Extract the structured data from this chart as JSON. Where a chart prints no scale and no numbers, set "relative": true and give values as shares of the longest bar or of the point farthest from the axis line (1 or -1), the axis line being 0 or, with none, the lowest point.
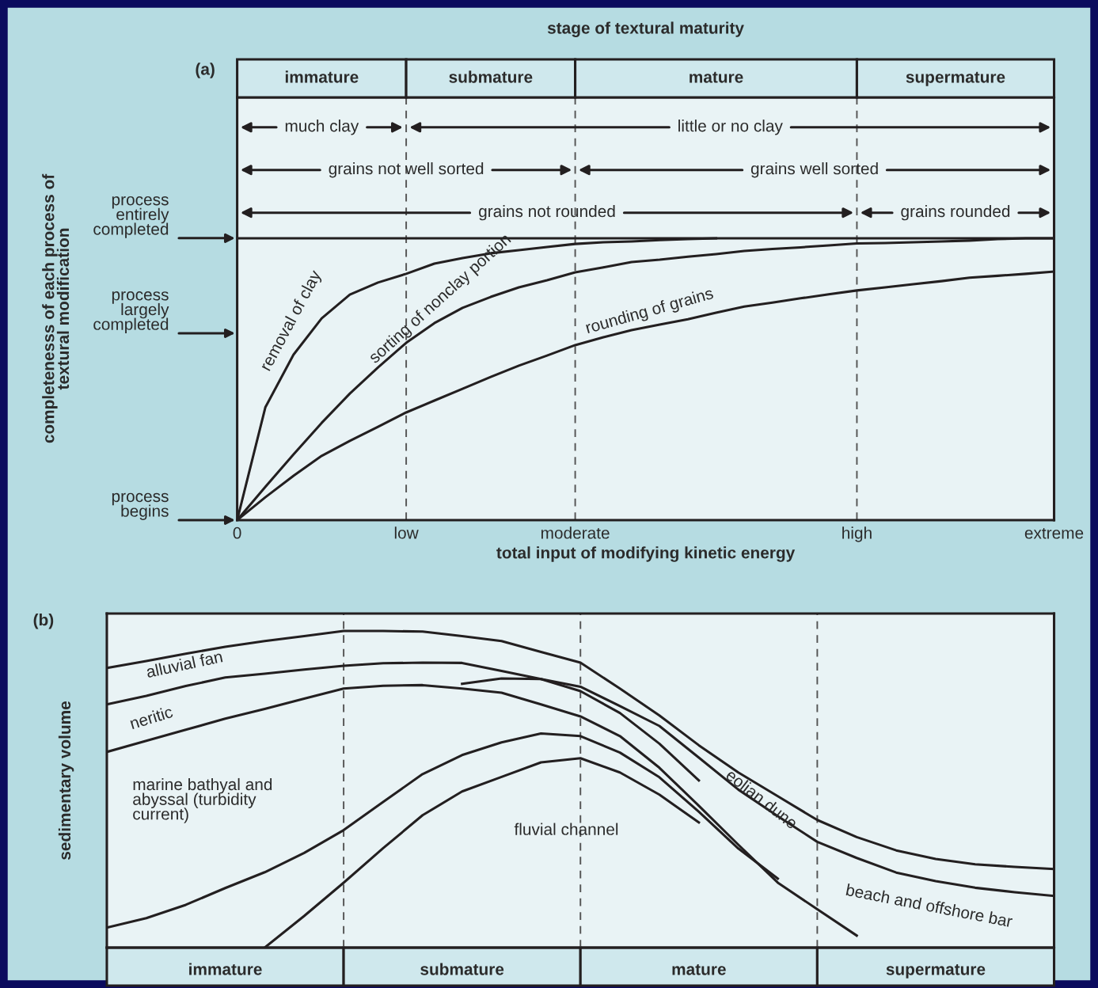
{
  "chart_data": [
    {
      "type": "line",
      "relative": true,
      "title": "stage of textural maturity",
      "subtitle": "(a)",
      "xlabel": "total input of modifying kinetic energy",
      "ylabel": "completenesss of each process of\ntextural modification",
      "grid": "x",
      "categories": [
        "0",
        null,
        null,
        null,
        null,
        null,
        "low",
        null,
        null,
        null,
        null,
        null,
        "moderate",
        null,
        null,
        null,
        null,
        null,
        null,
        null,
        null,
        null,
        "high",
        null,
        null,
        null,
        null,
        null,
        null,
        "extreme"
      ],
      "annotations": [
        "immature",
        "submature",
        "mature",
        "supermature",
        "much clay",
        "little or no clay",
        "grains not well sorted",
        "grains well sorted",
        "grains not rounded",
        "grains rounded",
        "process\nbegins",
        "process\nlargely\ncompleted",
        "process\nentirely\ncompleted"
      ],
      "series": [
        {
          "name": "removal of clay",
          "color": "#231f20",
          "values": [
            0,
            0.4,
            0.587,
            0.716,
            0.8,
            0.843,
            0.874,
            0.91,
            0.93,
            0.947,
            0.958,
            0.969,
            0.98,
            0.986,
            0.989,
            0.994,
            0.997,
            1,
            null,
            null,
            null,
            null,
            null,
            null,
            null,
            null,
            null,
            null,
            null,
            null
          ]
        },
        {
          "name": "sorting of nonclay portion",
          "color": "#231f20",
          "values": [
            0,
            0.118,
            0.233,
            0.345,
            0.449,
            0.542,
            0.629,
            0.699,
            0.753,
            0.792,
            0.826,
            0.851,
            0.879,
            0.897,
            0.916,
            0.924,
            0.935,
            0.944,
            0.955,
            0.962,
            0.968,
            0.975,
            0.982,
            0.983,
            0.986,
            0.989,
            0.992,
            0.997,
            1,
            1
          ]
        },
        {
          "name": "rounding of grains",
          "color": "#231f20",
          "values": [
            0,
            0.081,
            0.157,
            0.228,
            0.281,
            0.331,
            0.382,
            0.424,
            0.466,
            0.508,
            0.548,
            0.584,
            0.621,
            0.649,
            0.674,
            0.694,
            0.713,
            0.736,
            0.758,
            0.772,
            0.787,
            0.801,
            0.815,
            0.826,
            0.837,
            0.848,
            0.86,
            0.867,
            0.874,
            0.882
          ]
        }
      ],
      "ref_lines": [
        {
          "axis": "y",
          "value": 1,
          "color": "#231f20",
          "line_style": "solid"
        }
      ]
    },
    {
      "type": "line",
      "relative": true,
      "subtitle": "(b)",
      "ylabel": "sedimentary volume",
      "grid": "x",
      "categories": [
        null,
        null,
        null,
        "immature",
        null,
        null,
        null,
        null,
        null,
        "submature",
        null,
        null,
        null,
        null,
        null,
        "mature",
        null,
        null,
        null,
        null,
        null,
        "supermature",
        null,
        null,
        null
      ],
      "annotations": [
        "alluvial fan",
        "neritic",
        "marine bathyal and\nabyssal (turbidity\ncurrent)",
        "fluvial channel",
        "eolian dune",
        "beach and offshore bar"
      ],
      "series": [
        {
          "color": "#231f20",
          "values": [
            0.883,
            0.905,
            0.928,
            0.95,
            0.968,
            0.984,
            1.0,
            1.0,
            0.998,
            0.984,
            0.968,
            0.934,
            0.9,
            0.818,
            0.733,
            0.639,
            0.553,
            0.478,
            0.403,
            0.349,
            0.307,
            0.28,
            0.263,
            0.255,
            0.248
          ]
        },
        {
          "color": "#231f20",
          "values": [
            0.768,
            0.795,
            0.826,
            0.853,
            0.865,
            0.878,
            0.89,
            0.898,
            0.9,
            0.899,
            0.874,
            0.848,
            0.824,
            0.763,
            0.7,
            0.6,
            0.499,
            0.415,
            0.334,
            0.283,
            0.237,
            0.21,
            0.189,
            0.175,
            0.163
          ]
        },
        {
          "color": "#231f20",
          "values": [
            0.618,
            0.653,
            0.688,
            0.723,
            0.754,
            0.786,
            0.818,
            0.827,
            0.829,
            0.818,
            0.805,
            0.768,
            0.73,
            0.668,
            0.568,
            0.448,
            0.325,
            0.205,
            0.121,
            0.038,
            null,
            null,
            null,
            null,
            null
          ]
        },
        {
          "color": "#231f20",
          "values": [
            null,
            null,
            null,
            null,
            null,
            null,
            null,
            null,
            null,
            0.833,
            0.85,
            0.848,
            0.81,
            0.741,
            0.644,
            0.528,
            null,
            null,
            null,
            null,
            null,
            null,
            null,
            null,
            null
          ]
        },
        {
          "color": "#231f20",
          "values": [
            0.063,
            0.093,
            0.135,
            0.188,
            0.238,
            0.299,
            0.371,
            0.46,
            0.548,
            0.608,
            0.648,
            0.676,
            0.668,
            0.616,
            0.538,
            0.429,
            0.313,
            0.218,
            null,
            null,
            null,
            null,
            null,
            null,
            null
          ]
        },
        {
          "color": "#231f20",
          "values": [
            null,
            null,
            null,
            null,
            0,
            0.1,
            0.205,
            0.314,
            0.418,
            0.493,
            0.539,
            0.585,
            0.598,
            0.553,
            0.483,
            0.395,
            null,
            null,
            null,
            null,
            null,
            null,
            null,
            null,
            null
          ]
        }
      ]
    }
  ]
}
